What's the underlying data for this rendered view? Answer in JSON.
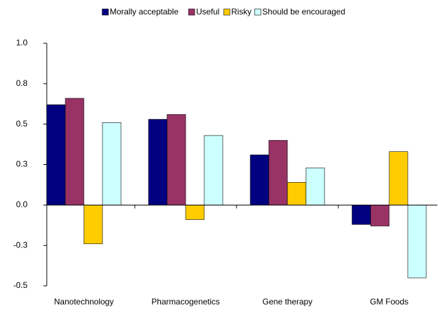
{
  "chart_data": {
    "type": "bar",
    "categories": [
      "Nanotechnology",
      "Pharmacogenetics",
      "Gene therapy",
      "GM Foods"
    ],
    "series": [
      {
        "name": "Morally acceptable",
        "color": "#000080",
        "values": [
          0.62,
          0.53,
          0.31,
          -0.12
        ]
      },
      {
        "name": "Useful",
        "color": "#993366",
        "values": [
          0.66,
          0.56,
          0.4,
          -0.13
        ]
      },
      {
        "name": "Risky",
        "color": "#ffcc00",
        "values": [
          -0.24,
          -0.09,
          0.14,
          0.33
        ]
      },
      {
        "name": "Should be encouraged",
        "color": "#ccffff",
        "values": [
          0.51,
          0.43,
          0.23,
          -0.45
        ]
      }
    ],
    "ylim": [
      -0.5,
      1.0
    ],
    "yticks": [
      {
        "value": 1.0,
        "label": "1.0"
      },
      {
        "value": 0.75,
        "label": "0.8"
      },
      {
        "value": 0.5,
        "label": "0.5"
      },
      {
        "value": 0.25,
        "label": "0.3"
      },
      {
        "value": 0.0,
        "label": "0.0"
      },
      {
        "value": -0.25,
        "label": "-0.3"
      },
      {
        "value": -0.5,
        "label": "-0.5"
      }
    ],
    "legend": "top"
  }
}
